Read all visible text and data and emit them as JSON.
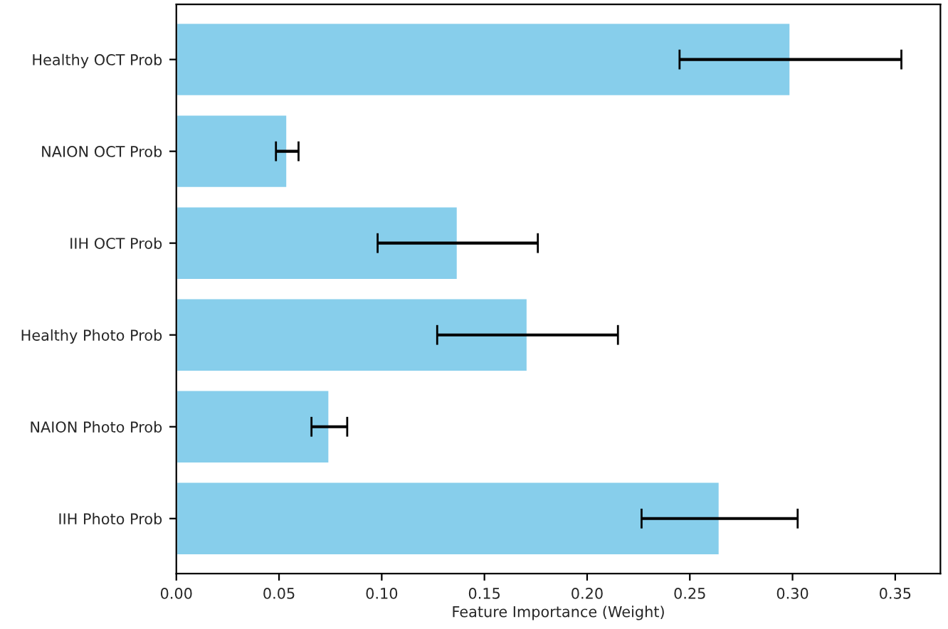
{
  "chart_data": {
    "type": "bar",
    "orientation": "horizontal",
    "categories": [
      "Healthy OCT Prob",
      "NAION OCT Prob",
      "IIH OCT Prob",
      "Healthy Photo Prob",
      "NAION Photo Prob",
      "IIH Photo Prob"
    ],
    "values": [
      0.299,
      0.054,
      0.137,
      0.171,
      0.0745,
      0.2645
    ],
    "errors": [
      0.054,
      0.0055,
      0.039,
      0.044,
      0.0087,
      0.038
    ],
    "color": "#87ceeb",
    "xlabel": "Feature Importance (Weight)",
    "xlim": [
      0,
      0.372
    ],
    "xticks": [
      {
        "value": 0,
        "label": "0.00"
      },
      {
        "value": 0.05,
        "label": "0.05"
      },
      {
        "value": 0.1,
        "label": "0.10"
      },
      {
        "value": 0.15,
        "label": "0.15"
      },
      {
        "value": 0.2,
        "label": "0.20"
      },
      {
        "value": 0.25,
        "label": "0.25"
      },
      {
        "value": 0.3,
        "label": "0.30"
      },
      {
        "value": 0.35,
        "label": "0.35"
      }
    ],
    "grid": false,
    "legend": false
  }
}
